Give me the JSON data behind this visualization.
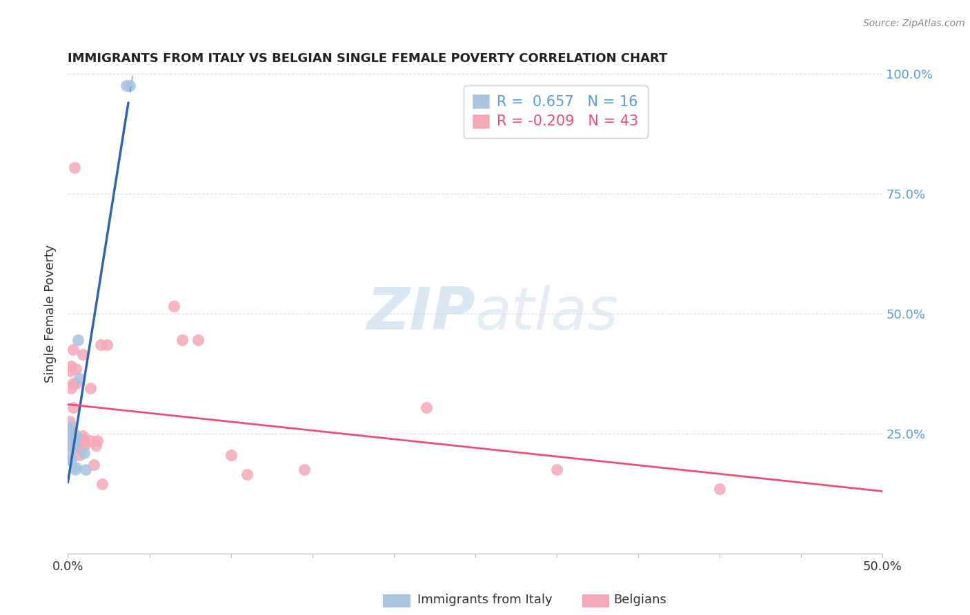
{
  "title": "IMMIGRANTS FROM ITALY VS BELGIAN SINGLE FEMALE POVERTY CORRELATION CHART",
  "source": "Source: ZipAtlas.com",
  "ylabel": "Single Female Poverty",
  "xlim": [
    0.0,
    0.5
  ],
  "ylim": [
    0.0,
    1.0
  ],
  "yticks": [
    0.0,
    0.25,
    0.5,
    0.75,
    1.0
  ],
  "ytick_labels_right": [
    "",
    "25.0%",
    "50.0%",
    "75.0%",
    "100.0%"
  ],
  "xticks": [
    0.0,
    0.05,
    0.1,
    0.15,
    0.2,
    0.25,
    0.3,
    0.35,
    0.4,
    0.45,
    0.5
  ],
  "legend_R_italy": "0.657",
  "legend_N_italy": "16",
  "legend_R_belgians": "-0.209",
  "legend_N_belgians": "43",
  "italy_color": "#a8c4e0",
  "belgians_color": "#f4a8b8",
  "italy_line_color": "#3264aa",
  "belgians_line_color": "#e8507a",
  "legend_italy_color": "#a8c4e0",
  "legend_belgians_color": "#f4a8b8",
  "watermark_zip": "ZIP",
  "watermark_atlas": "atlas",
  "background_color": "#ffffff",
  "grid_color": "#d8d8d8",
  "italy_points": [
    [
      0.001,
      0.195
    ],
    [
      0.0015,
      0.215
    ],
    [
      0.002,
      0.245
    ],
    [
      0.002,
      0.265
    ],
    [
      0.002,
      0.195
    ],
    [
      0.003,
      0.225
    ],
    [
      0.004,
      0.235
    ],
    [
      0.0045,
      0.175
    ],
    [
      0.005,
      0.245
    ],
    [
      0.005,
      0.18
    ],
    [
      0.006,
      0.445
    ],
    [
      0.007,
      0.365
    ],
    [
      0.01,
      0.21
    ],
    [
      0.011,
      0.175
    ],
    [
      0.036,
      0.975
    ],
    [
      0.038,
      0.975
    ]
  ],
  "belgians_points": [
    [
      0.0005,
      0.235
    ],
    [
      0.0007,
      0.255
    ],
    [
      0.0008,
      0.24
    ],
    [
      0.001,
      0.275
    ],
    [
      0.001,
      0.225
    ],
    [
      0.001,
      0.26
    ],
    [
      0.0015,
      0.38
    ],
    [
      0.002,
      0.39
    ],
    [
      0.002,
      0.345
    ],
    [
      0.002,
      0.245
    ],
    [
      0.002,
      0.225
    ],
    [
      0.003,
      0.305
    ],
    [
      0.003,
      0.425
    ],
    [
      0.003,
      0.355
    ],
    [
      0.004,
      0.805
    ],
    [
      0.005,
      0.355
    ],
    [
      0.005,
      0.385
    ],
    [
      0.006,
      0.225
    ],
    [
      0.007,
      0.225
    ],
    [
      0.007,
      0.205
    ],
    [
      0.008,
      0.235
    ],
    [
      0.0085,
      0.215
    ],
    [
      0.009,
      0.415
    ],
    [
      0.009,
      0.245
    ],
    [
      0.01,
      0.225
    ],
    [
      0.01,
      0.235
    ],
    [
      0.014,
      0.345
    ],
    [
      0.014,
      0.235
    ],
    [
      0.016,
      0.185
    ],
    [
      0.017,
      0.225
    ],
    [
      0.018,
      0.235
    ],
    [
      0.02,
      0.435
    ],
    [
      0.021,
      0.145
    ],
    [
      0.024,
      0.435
    ],
    [
      0.065,
      0.515
    ],
    [
      0.07,
      0.445
    ],
    [
      0.08,
      0.445
    ],
    [
      0.1,
      0.205
    ],
    [
      0.11,
      0.165
    ],
    [
      0.145,
      0.175
    ],
    [
      0.22,
      0.305
    ],
    [
      0.3,
      0.175
    ],
    [
      0.4,
      0.135
    ]
  ]
}
